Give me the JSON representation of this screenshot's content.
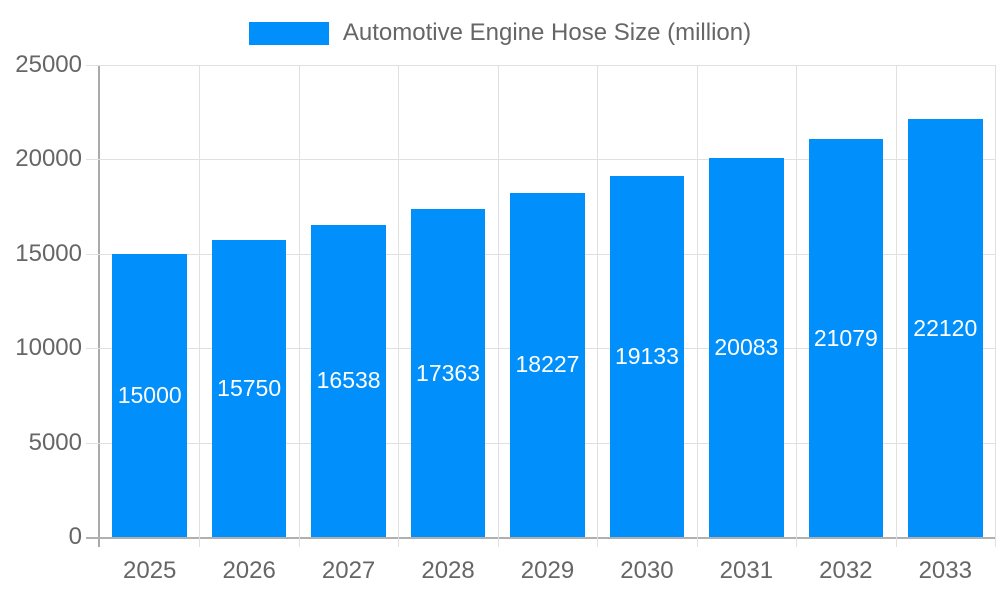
{
  "chart_data": {
    "type": "bar",
    "title": "Automotive Engine Hose Size (million)",
    "legend_position": "top",
    "categories": [
      "2025",
      "2026",
      "2027",
      "2028",
      "2029",
      "2030",
      "2031",
      "2032",
      "2033"
    ],
    "series": [
      {
        "name": "Automotive Engine Hose Size (million)",
        "values": [
          15000,
          15750,
          16538,
          17363,
          18227,
          19133,
          20083,
          21079,
          22120
        ]
      }
    ],
    "value_labels": [
      "15000",
      "15750",
      "16538",
      "17363",
      "18227",
      "19133",
      "20083",
      "21079",
      "22120"
    ],
    "xlabel": "",
    "ylabel": "",
    "ylim": [
      0,
      25000
    ],
    "yticks": [
      0,
      5000,
      10000,
      15000,
      20000,
      25000
    ],
    "grid": "both",
    "colors": {
      "bar": "#008FFB",
      "value_label": "#ffffff",
      "axis_label": "#666666",
      "gridline": "#e0e0e0",
      "axis_line": "#aaaaaa",
      "background": "#ffffff"
    }
  }
}
